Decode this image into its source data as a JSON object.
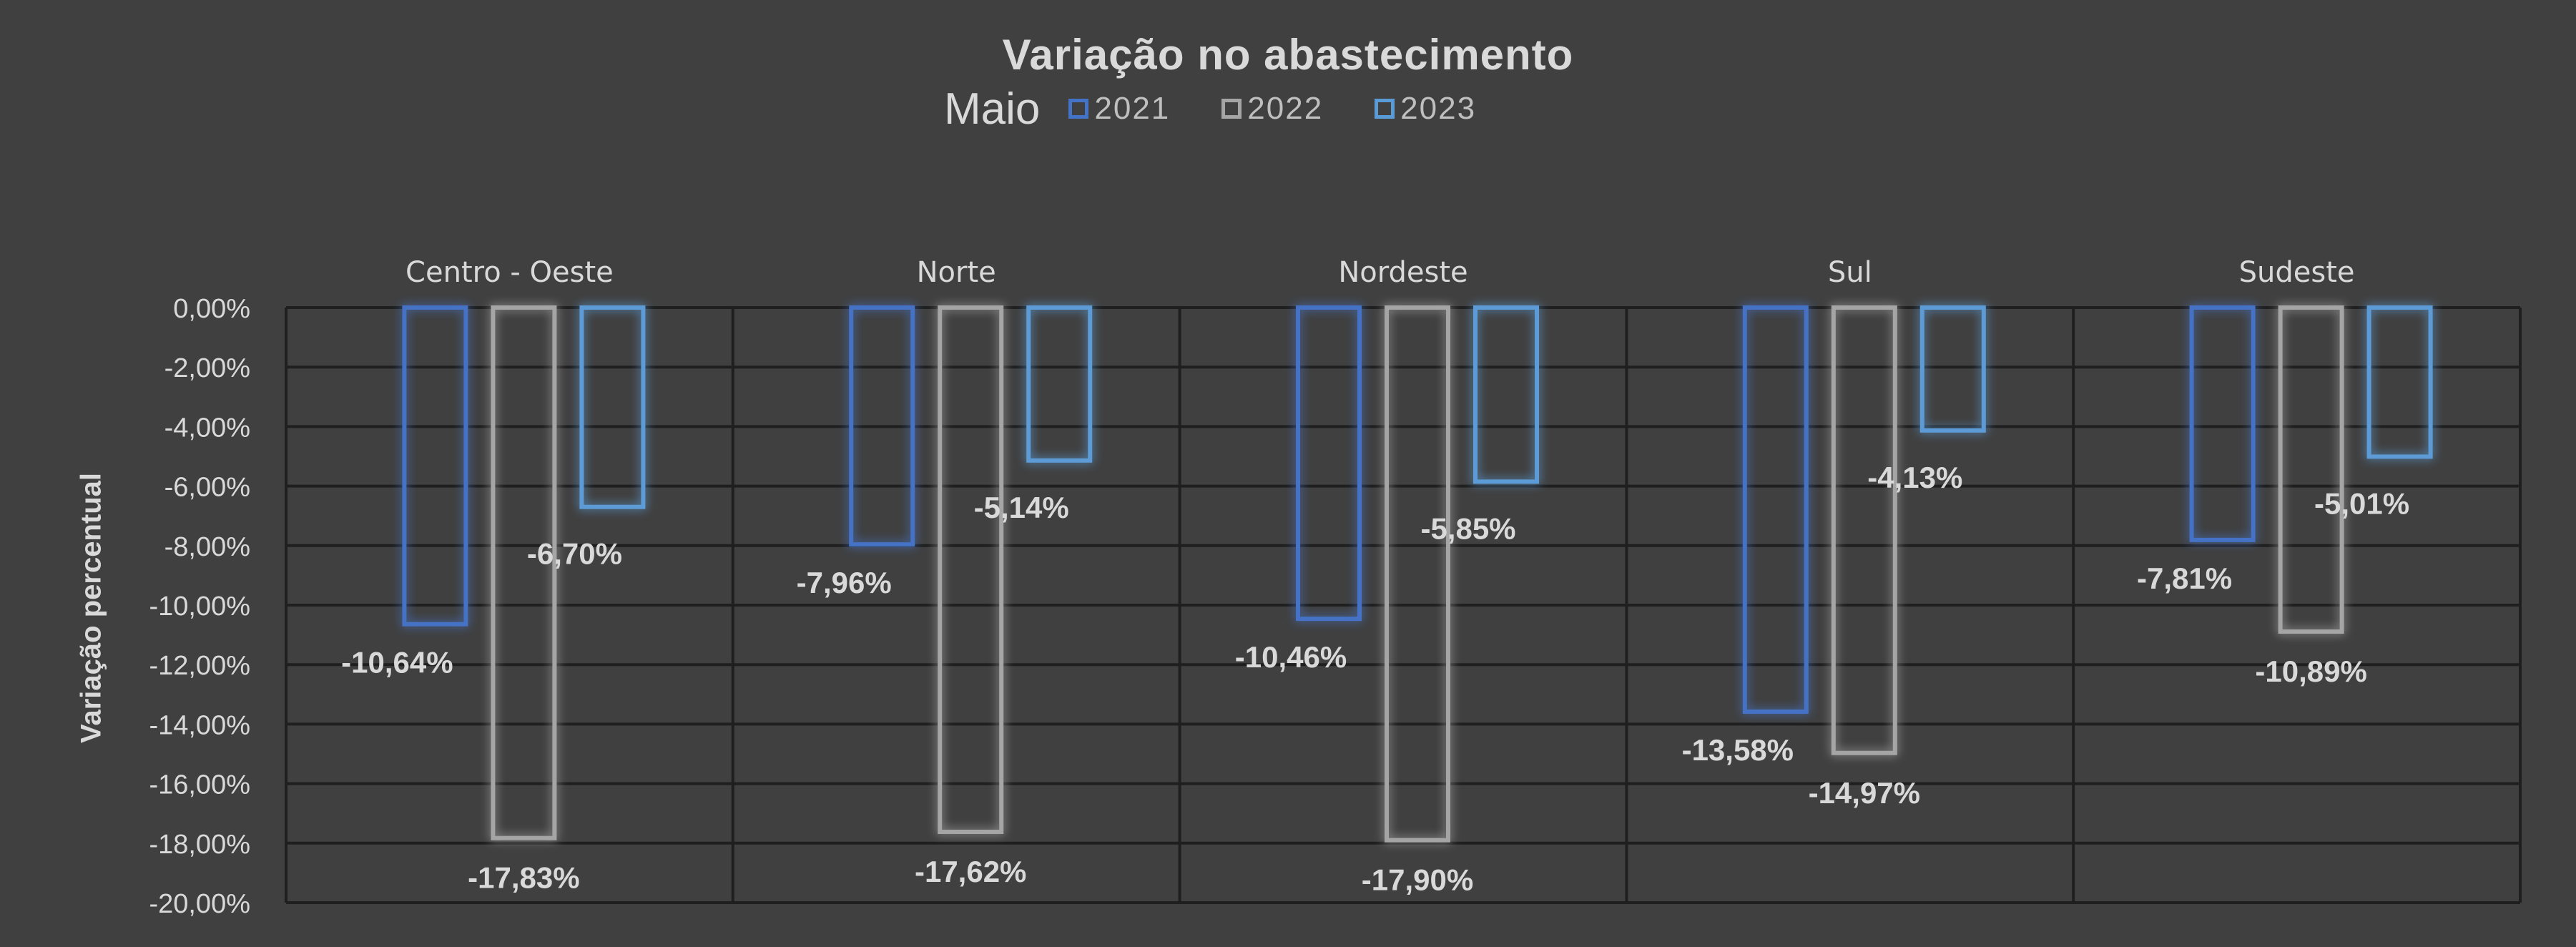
{
  "chart_data": {
    "type": "bar",
    "title": "Variação no abastecimento",
    "subtitle": "Maio",
    "ylabel": "Variação  percentual",
    "categories": [
      "Centro - Oeste",
      "Norte",
      "Nordeste",
      "Sul",
      "Sudeste"
    ],
    "series": [
      {
        "name": "2021",
        "color": "#4472c4",
        "values": [
          -10.64,
          -7.96,
          -10.46,
          -13.58,
          -7.81
        ],
        "labels": [
          "-10,64%",
          "-7,96%",
          "-10,46%",
          "-13,58%",
          "-7,81%"
        ]
      },
      {
        "name": "2022",
        "color": "#a5a5a5",
        "values": [
          -17.83,
          -17.62,
          -17.9,
          -14.97,
          -10.89
        ],
        "labels": [
          "-17,83%",
          "-17,62%",
          "-17,90%",
          "-14,97%",
          "-10,89%"
        ]
      },
      {
        "name": "2023",
        "color": "#5b9bd5",
        "values": [
          -6.7,
          -5.14,
          -5.85,
          -4.13,
          -5.01
        ],
        "labels": [
          "-6,70%",
          "-5,14%",
          "-5,85%",
          "-4,13%",
          "-5,01%"
        ]
      }
    ],
    "ylim": [
      -20,
      0
    ],
    "y_ticks": [
      "0,00%",
      "-2,00%",
      "-4,00%",
      "-6,00%",
      "-8,00%",
      "-10,00%",
      "-12,00%",
      "-14,00%",
      "-16,00%",
      "-18,00%",
      "-20,00%"
    ],
    "grid": true,
    "legend": "top",
    "background": "#404040"
  }
}
